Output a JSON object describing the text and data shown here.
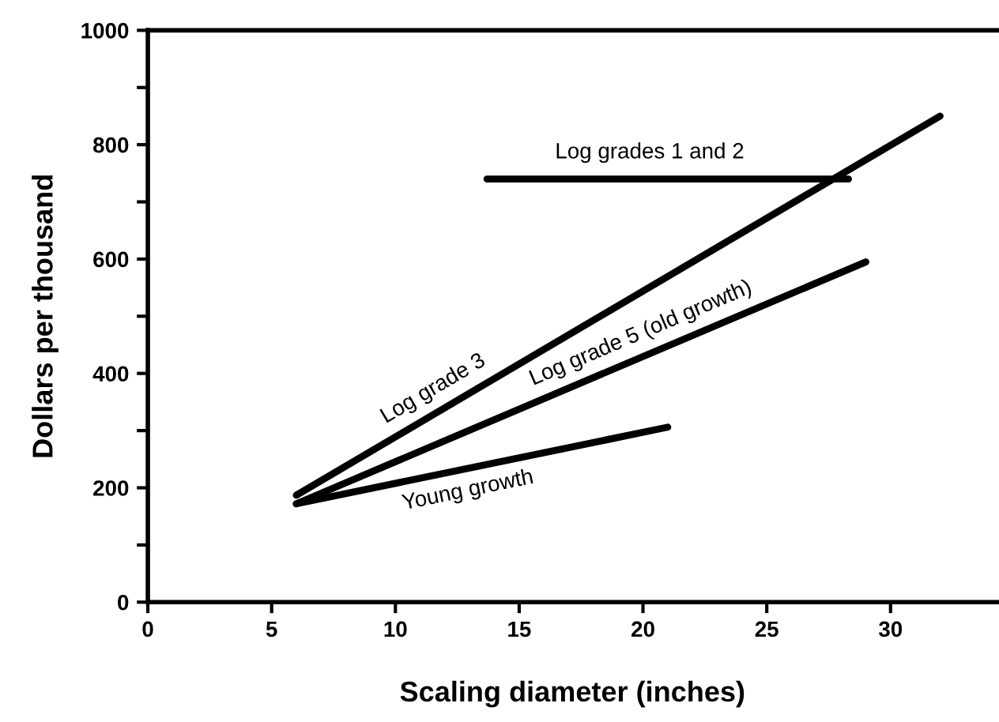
{
  "chart_data": {
    "type": "line",
    "xlabel": "Scaling diameter (inches)",
    "ylabel": "Dollars per thousand",
    "series": [
      {
        "name": "Log grades 1 and 2",
        "color": "#000000",
        "x": [
          13.7,
          28.3
        ],
        "values": [
          740,
          740
        ]
      },
      {
        "name": "Log grade 3",
        "color": "#000000",
        "x": [
          6,
          32
        ],
        "values": [
          187,
          850
        ]
      },
      {
        "name": "Log grade 5 (old growth)",
        "color": "#000000",
        "x": [
          6,
          29
        ],
        "values": [
          172,
          595
        ]
      },
      {
        "name": "Young growth",
        "color": "#000000",
        "x": [
          6,
          21
        ],
        "values": [
          172,
          306
        ]
      }
    ],
    "xlim": [
      0,
      34.3
    ],
    "xticks": [
      0,
      5,
      10,
      15,
      20,
      25,
      30
    ],
    "ylim": [
      0,
      1000
    ],
    "yticks": [
      0,
      {
        "value": 100,
        "label": null
      },
      200,
      {
        "value": 300,
        "label": null
      },
      400,
      {
        "value": 500,
        "label": null
      },
      600,
      {
        "value": 700,
        "label": null
      },
      800,
      {
        "value": 900,
        "label": null
      },
      1000
    ],
    "grid": false,
    "legend": false,
    "marker": "none",
    "line_style": "solid"
  }
}
